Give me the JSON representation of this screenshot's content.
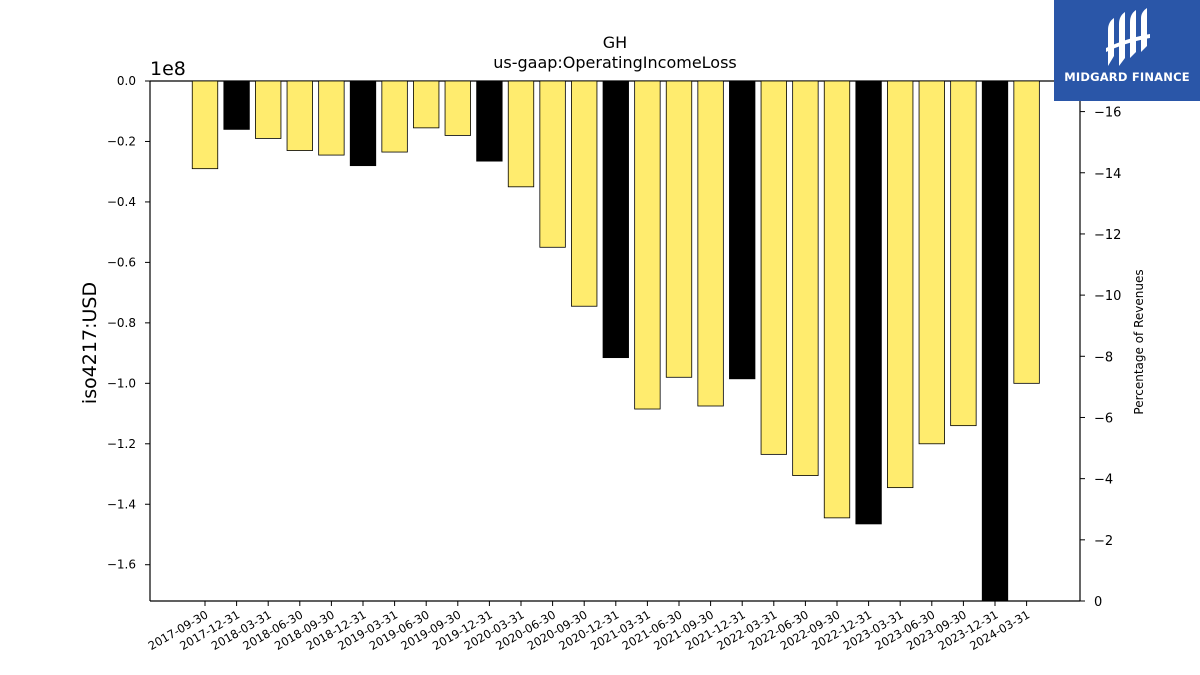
{
  "chart_data": {
    "type": "bar",
    "title": "GH",
    "subtitle": "us-gaap:OperatingIncomeLoss",
    "ylabel": "iso4217:USD",
    "y_multiplier_label": "1e8",
    "y2label": "Percentage of Revenues",
    "ylim": [
      -1.72,
      0.0
    ],
    "y_ticks": [
      0.0,
      -0.2,
      -0.4,
      -0.6,
      -0.8,
      -1.0,
      -1.2,
      -1.4,
      -1.6
    ],
    "y_tick_labels": [
      "0.0",
      "−0.2",
      "−0.4",
      "−0.6",
      "−0.8",
      "−1.0",
      "−1.2",
      "−1.4",
      "−1.6"
    ],
    "y2lim": [
      0,
      -17
    ],
    "y2_ticks": [
      -16,
      -14,
      -12,
      -10,
      -8,
      -6,
      -4,
      -2,
      0
    ],
    "y2_tick_labels": [
      "−16",
      "−14",
      "−12",
      "−10",
      "−8",
      "−6",
      "−4",
      "−2",
      "0"
    ],
    "categories": [
      "2017-09-30",
      "2017-12-31",
      "2018-03-31",
      "2018-06-30",
      "2018-09-30",
      "2018-12-31",
      "2019-03-31",
      "2019-06-30",
      "2019-09-30",
      "2019-12-31",
      "2020-03-31",
      "2020-06-30",
      "2020-09-30",
      "2020-12-31",
      "2021-03-31",
      "2021-06-30",
      "2021-09-30",
      "2021-12-31",
      "2022-03-31",
      "2022-06-30",
      "2022-09-30",
      "2022-12-31",
      "2023-03-31",
      "2023-06-30",
      "2023-09-30",
      "2023-12-31",
      "2024-03-31"
    ],
    "values": [
      -0.29,
      -0.16,
      -0.19,
      -0.23,
      -0.245,
      -0.28,
      -0.235,
      -0.155,
      -0.18,
      -0.265,
      -0.35,
      -0.55,
      -0.745,
      -0.915,
      -1.085,
      -0.98,
      -1.075,
      -0.985,
      -1.235,
      -1.305,
      -1.445,
      -1.465,
      -1.345,
      -1.2,
      -1.14,
      -1.72,
      -1.0
    ],
    "bar_kinds": [
      "quarter",
      "annual",
      "quarter",
      "quarter",
      "quarter",
      "annual",
      "quarter",
      "quarter",
      "quarter",
      "annual",
      "quarter",
      "quarter",
      "quarter",
      "annual",
      "quarter",
      "quarter",
      "quarter",
      "annual",
      "quarter",
      "quarter",
      "quarter",
      "annual",
      "quarter",
      "quarter",
      "quarter",
      "annual",
      "quarter"
    ],
    "colors": {
      "quarter": "#ffec6e",
      "annual": "#000000",
      "edge": "#000000"
    },
    "grid": false,
    "legend": "none"
  },
  "logo": {
    "text": "MIDGARD FINANCE",
    "bg": "#2a56a8"
  }
}
